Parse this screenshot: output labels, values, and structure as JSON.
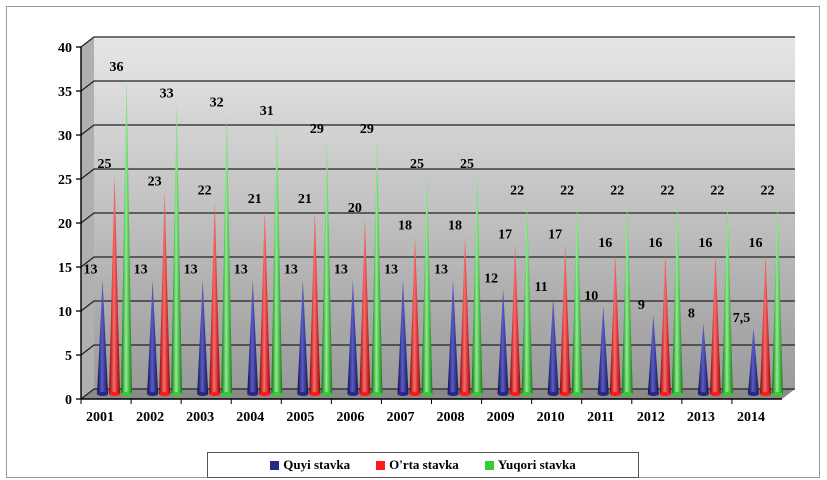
{
  "chart_data": {
    "type": "bar",
    "title": "",
    "xlabel": "",
    "ylabel": "",
    "ylim": [
      0,
      40
    ],
    "yticks": [
      0,
      5,
      10,
      15,
      20,
      25,
      30,
      35,
      40
    ],
    "grid": true,
    "legend_position": "bottom",
    "categories": [
      "2001",
      "2002",
      "2003",
      "2004",
      "2005",
      "2006",
      "2007",
      "2008",
      "2009",
      "2010",
      "2011",
      "2012",
      "2013",
      "2014"
    ],
    "series": [
      {
        "name": "Quyi stavka",
        "color": "#27288a",
        "values": [
          13,
          13,
          13,
          13,
          13,
          13,
          13,
          13,
          12,
          11,
          10,
          9,
          8,
          7.5
        ],
        "labels": [
          "13",
          "13",
          "13",
          "13",
          "13",
          "13",
          "13",
          "13",
          "12",
          "11",
          "10",
          "9",
          "8",
          "7,5"
        ]
      },
      {
        "name": "O'rta stavka",
        "color": "#ff1a1a",
        "values": [
          25,
          23,
          22,
          21,
          21,
          20,
          18,
          18,
          17,
          17,
          16,
          16,
          16,
          16
        ],
        "labels": [
          "25",
          "23",
          "22",
          "21",
          "21",
          "20",
          "18",
          "18",
          "17",
          "17",
          "16",
          "16",
          "16",
          "16"
        ]
      },
      {
        "name": "Yuqori stavka",
        "color": "#33cc33",
        "values": [
          36,
          33,
          32,
          31,
          29,
          29,
          25,
          25,
          22,
          22,
          22,
          22,
          22,
          22
        ],
        "labels": [
          "36",
          "33",
          "32",
          "31",
          "29",
          "29",
          "25",
          "25",
          "22",
          "22",
          "22",
          "22",
          "22",
          "22"
        ]
      }
    ]
  }
}
